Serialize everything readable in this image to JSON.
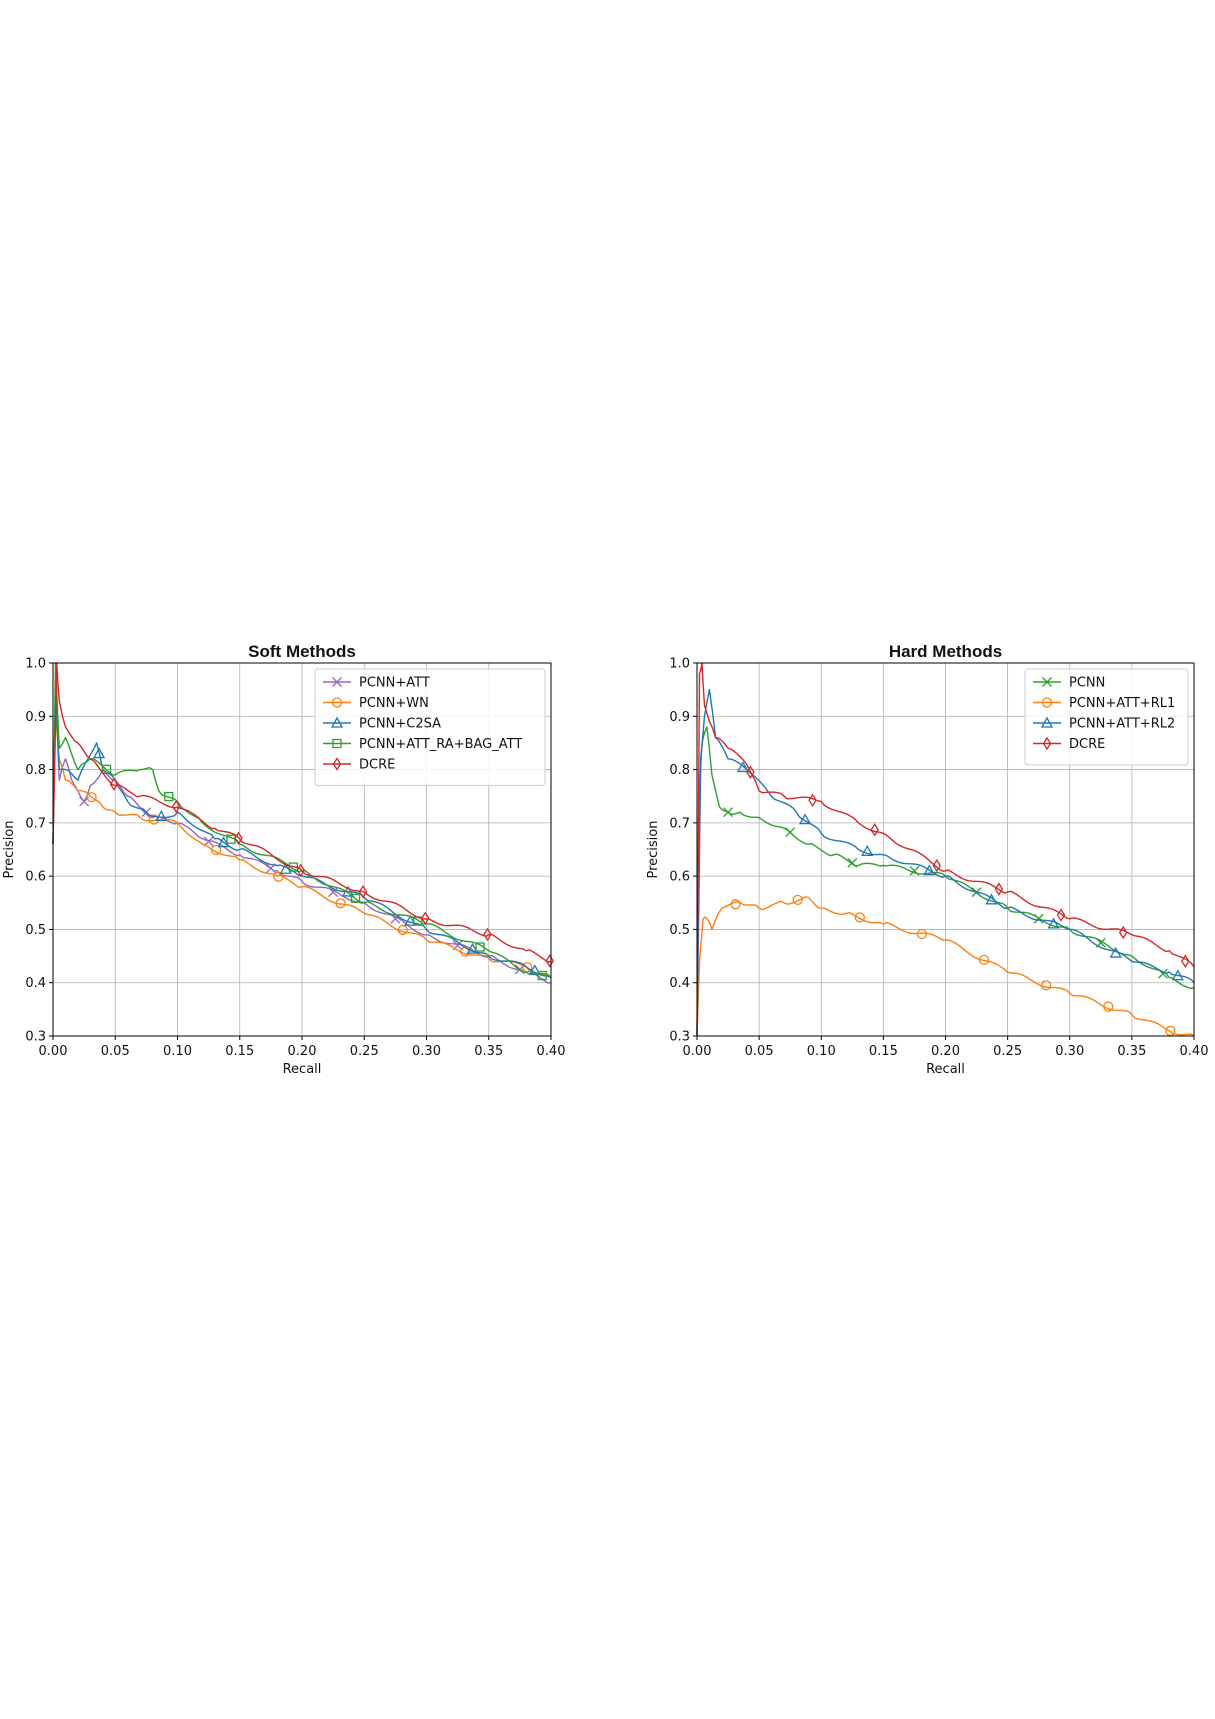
{
  "chart_data": [
    {
      "type": "line",
      "title": "Soft Methods",
      "xlabel": "Recall",
      "ylabel": "Precision",
      "xlim": [
        0.0,
        0.4
      ],
      "ylim": [
        0.3,
        1.0
      ],
      "xticks": [
        "0.00",
        "0.05",
        "0.10",
        "0.15",
        "0.20",
        "0.25",
        "0.30",
        "0.35",
        "0.40"
      ],
      "yticks": [
        "0.3",
        "0.4",
        "0.5",
        "0.6",
        "0.7",
        "0.8",
        "0.9",
        "1.0"
      ],
      "grid": true,
      "legend_position": "top-right",
      "series": [
        {
          "name": "PCNN+ATT",
          "color": "#9467bd",
          "marker": "x",
          "x": [
            0.0,
            0.002,
            0.005,
            0.01,
            0.015,
            0.02,
            0.025,
            0.03,
            0.04,
            0.05,
            0.06,
            0.08,
            0.1,
            0.12,
            0.15,
            0.18,
            0.2,
            0.25,
            0.3,
            0.35,
            0.38,
            0.4
          ],
          "y": [
            0.66,
            0.95,
            0.78,
            0.82,
            0.78,
            0.76,
            0.74,
            0.77,
            0.8,
            0.78,
            0.75,
            0.71,
            0.7,
            0.67,
            0.64,
            0.61,
            0.59,
            0.55,
            0.49,
            0.45,
            0.42,
            0.4
          ]
        },
        {
          "name": "PCNN+WN",
          "color": "#ff7f0e",
          "marker": "o",
          "x": [
            0.0,
            0.002,
            0.005,
            0.01,
            0.02,
            0.03,
            0.04,
            0.05,
            0.07,
            0.1,
            0.12,
            0.15,
            0.18,
            0.2,
            0.25,
            0.3,
            0.35,
            0.38,
            0.4
          ],
          "y": [
            0.66,
            0.9,
            0.82,
            0.78,
            0.76,
            0.75,
            0.73,
            0.72,
            0.71,
            0.7,
            0.66,
            0.63,
            0.6,
            0.58,
            0.53,
            0.48,
            0.445,
            0.43,
            0.41
          ]
        },
        {
          "name": "PCNN+C2SA",
          "color": "#1f77b4",
          "marker": "^",
          "x": [
            0.0,
            0.002,
            0.005,
            0.01,
            0.02,
            0.035,
            0.04,
            0.05,
            0.06,
            0.075,
            0.09,
            0.1,
            0.13,
            0.15,
            0.18,
            0.2,
            0.25,
            0.3,
            0.35,
            0.38,
            0.4
          ],
          "y": [
            0.66,
            0.95,
            0.8,
            0.8,
            0.78,
            0.85,
            0.8,
            0.78,
            0.74,
            0.72,
            0.71,
            0.72,
            0.67,
            0.65,
            0.62,
            0.6,
            0.56,
            0.5,
            0.45,
            0.43,
            0.41
          ]
        },
        {
          "name": "PCNN+ATT_RA+BAG_ATT",
          "color": "#2ca02c",
          "marker": "s",
          "x": [
            0.0,
            0.002,
            0.005,
            0.01,
            0.02,
            0.03,
            0.05,
            0.07,
            0.08,
            0.085,
            0.1,
            0.12,
            0.15,
            0.2,
            0.25,
            0.3,
            0.35,
            0.38,
            0.4
          ],
          "y": [
            0.66,
            1.0,
            0.84,
            0.86,
            0.8,
            0.82,
            0.79,
            0.8,
            0.8,
            0.76,
            0.74,
            0.7,
            0.66,
            0.61,
            0.55,
            0.51,
            0.46,
            0.42,
            0.41
          ]
        },
        {
          "name": "DCRE",
          "color": "#d62728",
          "marker": "d",
          "x": [
            0.0,
            0.003,
            0.005,
            0.01,
            0.02,
            0.03,
            0.05,
            0.07,
            0.1,
            0.13,
            0.15,
            0.2,
            0.25,
            0.3,
            0.35,
            0.38,
            0.4
          ],
          "y": [
            0.66,
            1.0,
            0.93,
            0.88,
            0.85,
            0.82,
            0.77,
            0.75,
            0.73,
            0.69,
            0.67,
            0.61,
            0.57,
            0.52,
            0.49,
            0.46,
            0.44
          ]
        }
      ]
    },
    {
      "type": "line",
      "title": "Hard Methods",
      "xlabel": "Recall",
      "ylabel": "Precision",
      "xlim": [
        0.0,
        0.4
      ],
      "ylim": [
        0.3,
        1.0
      ],
      "xticks": [
        "0.00",
        "0.05",
        "0.10",
        "0.15",
        "0.20",
        "0.25",
        "0.30",
        "0.35",
        "0.40"
      ],
      "yticks": [
        "0.3",
        "0.4",
        "0.5",
        "0.6",
        "0.7",
        "0.8",
        "0.9",
        "1.0"
      ],
      "grid": true,
      "legend_position": "top-right",
      "series": [
        {
          "name": "PCNN",
          "color": "#2ca02c",
          "marker": "x",
          "x": [
            0.0,
            0.002,
            0.004,
            0.008,
            0.012,
            0.018,
            0.025,
            0.035,
            0.05,
            0.07,
            0.09,
            0.11,
            0.13,
            0.15,
            0.2,
            0.25,
            0.3,
            0.35,
            0.38,
            0.4
          ],
          "y": [
            0.3,
            0.75,
            0.85,
            0.88,
            0.79,
            0.73,
            0.72,
            0.72,
            0.71,
            0.69,
            0.66,
            0.64,
            0.62,
            0.62,
            0.6,
            0.54,
            0.5,
            0.45,
            0.41,
            0.39
          ]
        },
        {
          "name": "PCNN+ATT+RL1",
          "color": "#ff7f0e",
          "marker": "o",
          "x": [
            0.0,
            0.002,
            0.005,
            0.008,
            0.012,
            0.02,
            0.035,
            0.05,
            0.07,
            0.09,
            0.1,
            0.12,
            0.15,
            0.2,
            0.25,
            0.3,
            0.35,
            0.38,
            0.4
          ],
          "y": [
            0.3,
            0.44,
            0.52,
            0.52,
            0.5,
            0.54,
            0.55,
            0.54,
            0.55,
            0.56,
            0.54,
            0.53,
            0.51,
            0.48,
            0.42,
            0.38,
            0.34,
            0.31,
            0.3
          ]
        },
        {
          "name": "PCNN+ATT+RL2",
          "color": "#1f77b4",
          "marker": "^",
          "x": [
            0.0,
            0.003,
            0.006,
            0.01,
            0.015,
            0.025,
            0.04,
            0.06,
            0.08,
            0.1,
            0.13,
            0.15,
            0.2,
            0.25,
            0.3,
            0.35,
            0.38,
            0.4
          ],
          "y": [
            0.3,
            0.82,
            0.9,
            0.95,
            0.86,
            0.82,
            0.8,
            0.75,
            0.72,
            0.68,
            0.65,
            0.64,
            0.6,
            0.54,
            0.5,
            0.44,
            0.42,
            0.4
          ]
        },
        {
          "name": "DCRE",
          "color": "#d62728",
          "marker": "d",
          "x": [
            0.0,
            0.002,
            0.004,
            0.006,
            0.01,
            0.015,
            0.025,
            0.04,
            0.05,
            0.07,
            0.1,
            0.13,
            0.15,
            0.2,
            0.25,
            0.3,
            0.35,
            0.38,
            0.4
          ],
          "y": [
            0.3,
            0.98,
            1.0,
            0.92,
            0.89,
            0.86,
            0.84,
            0.81,
            0.76,
            0.75,
            0.74,
            0.7,
            0.68,
            0.61,
            0.57,
            0.52,
            0.49,
            0.46,
            0.43
          ]
        }
      ]
    }
  ]
}
